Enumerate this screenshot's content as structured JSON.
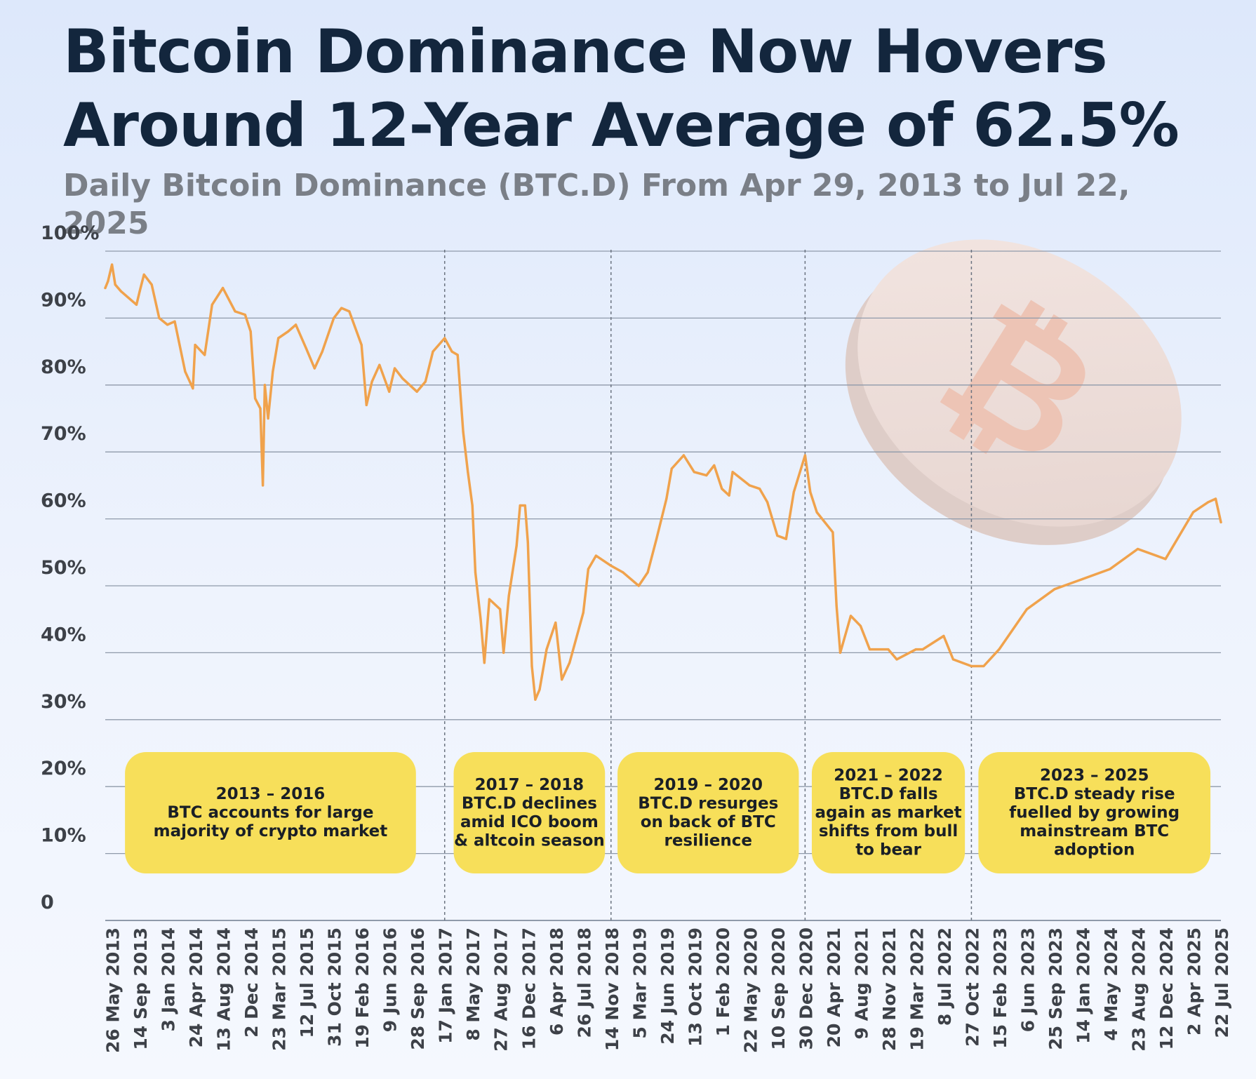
{
  "title": "Bitcoin Dominance Now Hovers Around 12-Year Average of 62.5%",
  "subtitle": "Daily Bitcoin Dominance (BTC.D) From Apr 29, 2013 to Jul 22, 2025",
  "colors": {
    "line": "#f0a24c",
    "grid": "#8f9aaa",
    "annotation_box": "#f7df5a",
    "title": "#13263d",
    "subtitle": "#7a7f87",
    "axis_text": "#3d4148"
  },
  "chart_data": {
    "type": "line",
    "title": "Bitcoin Dominance Now Hovers Around 12-Year Average of 62.5%",
    "subtitle": "Daily Bitcoin Dominance (BTC.D) From Apr 29, 2013 to Jul 22, 2025",
    "xlabel": "",
    "ylabel": "",
    "ylim": [
      0,
      100
    ],
    "x_range": [
      "29 Apr 2013",
      "22 Jul 2025"
    ],
    "grid": true,
    "legend": "none",
    "y_ticks": [
      "0",
      "10%",
      "20%",
      "30%",
      "40%",
      "50%",
      "60%",
      "70%",
      "80%",
      "90%",
      "100%"
    ],
    "x_ticks": [
      "26 May 2013",
      "14 Sep 2013",
      "3 Jan 2014",
      "24 Apr 2014",
      "13 Aug 2014",
      "2 Dec 2014",
      "23 Mar 2015",
      "12 Jul 2015",
      "31 Oct 2015",
      "19 Feb 2016",
      "9 Jun 2016",
      "28 Sep 2016",
      "17 Jan 2017",
      "8 May 2017",
      "27 Aug 2017",
      "16 Dec 2017",
      "6 Apr 2018",
      "26 Jul 2018",
      "14 Nov 2018",
      "5 Mar 2019",
      "24 Jun 2019",
      "13 Oct 2019",
      "1 Feb 2020",
      "22 May 2020",
      "10 Sep 2020",
      "30 Dec 2020",
      "20 Apr 2021",
      "9 Aug 2021",
      "28 Nov 2021",
      "19 Mar 2022",
      "8 Jul 2022",
      "27 Oct 2022",
      "15 Feb 2023",
      "6 Jun 2023",
      "25 Sep 2023",
      "14 Jan 2024",
      "4 May 2024",
      "23 Aug 2024",
      "12 Dec 2024",
      "2 Apr 2025",
      "22 Jul 2025"
    ],
    "period_dividers": [
      "17 Jan 2017",
      "14 Nov 2018",
      "30 Dec 2020",
      "27 Oct 2022"
    ],
    "series": [
      {
        "name": "",
        "points": [
          [
            "29 Apr 2013",
            94.5
          ],
          [
            "10 May 2013",
            95.5
          ],
          [
            "26 May 2013",
            98.0
          ],
          [
            "8 Jun 2013",
            95.0
          ],
          [
            "1 Jul 2013",
            94.0
          ],
          [
            "1 Aug 2013",
            93.0
          ],
          [
            "1 Sep 2013",
            92.0
          ],
          [
            "14 Sep 2013",
            94.0
          ],
          [
            "1 Oct 2013",
            96.5
          ],
          [
            "1 Nov 2013",
            95.0
          ],
          [
            "1 Dec 2013",
            90.0
          ],
          [
            "3 Jan 2014",
            89.0
          ],
          [
            "1 Feb 2014",
            89.5
          ],
          [
            "15 Mar 2014",
            82.0
          ],
          [
            "15 Apr 2014",
            79.5
          ],
          [
            "24 Apr 2014",
            86.0
          ],
          [
            "1 Jun 2014",
            84.5
          ],
          [
            "1 Jul 2014",
            92.0
          ],
          [
            "13 Aug 2014",
            94.5
          ],
          [
            "1 Oct 2014",
            91.0
          ],
          [
            "10 Nov 2014",
            90.5
          ],
          [
            "2 Dec 2014",
            88.0
          ],
          [
            "20 Dec 2014",
            78.0
          ],
          [
            "10 Jan 2015",
            76.5
          ],
          [
            "20 Jan 2015",
            65.0
          ],
          [
            "28 Jan 2015",
            80.0
          ],
          [
            "10 Feb 2015",
            75.0
          ],
          [
            "1 Mar 2015",
            82.0
          ],
          [
            "23 Mar 2015",
            87.0
          ],
          [
            "1 May 2015",
            88.0
          ],
          [
            "1 Jun 2015",
            89.0
          ],
          [
            "12 Jul 2015",
            85.5
          ],
          [
            "15 Aug 2015",
            82.5
          ],
          [
            "15 Sep 2015",
            85.0
          ],
          [
            "31 Oct 2015",
            90.0
          ],
          [
            "1 Dec 2015",
            91.5
          ],
          [
            "1 Jan 2016",
            91.0
          ],
          [
            "19 Feb 2016",
            86.0
          ],
          [
            "10 Mar 2016",
            77.0
          ],
          [
            "1 Apr 2016",
            80.5
          ],
          [
            "1 May 2016",
            83.0
          ],
          [
            "9 Jun 2016",
            79.0
          ],
          [
            "1 Jul 2016",
            82.5
          ],
          [
            "1 Aug 2016",
            81.0
          ],
          [
            "28 Sep 2016",
            79.0
          ],
          [
            "1 Nov 2016",
            80.5
          ],
          [
            "1 Dec 2016",
            85.0
          ],
          [
            "17 Jan 2017",
            87.0
          ],
          [
            "15 Feb 2017",
            85.0
          ],
          [
            "10 Mar 2017",
            84.5
          ],
          [
            "1 Apr 2017",
            73.0
          ],
          [
            "20 Apr 2017",
            67.0
          ],
          [
            "8 May 2017",
            62.0
          ],
          [
            "20 May 2017",
            52.0
          ],
          [
            "10 Jun 2017",
            45.0
          ],
          [
            "25 Jun 2017",
            38.5
          ],
          [
            "15 Jul 2017",
            48.0
          ],
          [
            "27 Aug 2017",
            46.5
          ],
          [
            "10 Sep 2017",
            40.0
          ],
          [
            "1 Oct 2017",
            48.5
          ],
          [
            "1 Nov 2017",
            56.0
          ],
          [
            "15 Nov 2017",
            62.0
          ],
          [
            "5 Dec 2017",
            62.0
          ],
          [
            "16 Dec 2017",
            56.5
          ],
          [
            "1 Jan 2018",
            38.0
          ],
          [
            "15 Jan 2018",
            33.0
          ],
          [
            "1 Feb 2018",
            34.5
          ],
          [
            "1 Mar 2018",
            40.5
          ],
          [
            "6 Apr 2018",
            44.5
          ],
          [
            "1 May 2018",
            36.0
          ],
          [
            "1 Jun 2018",
            38.5
          ],
          [
            "26 Jul 2018",
            46.0
          ],
          [
            "15 Aug 2018",
            52.5
          ],
          [
            "15 Sep 2018",
            54.5
          ],
          [
            "14 Nov 2018",
            53.0
          ],
          [
            "1 Jan 2019",
            52.0
          ],
          [
            "5 Mar 2019",
            50.0
          ],
          [
            "10 Apr 2019",
            52.0
          ],
          [
            "15 May 2019",
            57.0
          ],
          [
            "24 Jun 2019",
            63.0
          ],
          [
            "15 Jul 2019",
            67.5
          ],
          [
            "1 Sep 2019",
            69.5
          ],
          [
            "13 Oct 2019",
            67.0
          ],
          [
            "1 Dec 2019",
            66.5
          ],
          [
            "1 Jan 2020",
            68.0
          ],
          [
            "1 Feb 2020",
            64.5
          ],
          [
            "1 Mar 2020",
            63.5
          ],
          [
            "15 Mar 2020",
            67.0
          ],
          [
            "22 May 2020",
            65.0
          ],
          [
            "1 Jul 2020",
            64.5
          ],
          [
            "1 Aug 2020",
            62.5
          ],
          [
            "10 Sep 2020",
            57.5
          ],
          [
            "15 Oct 2020",
            57.0
          ],
          [
            "15 Nov 2020",
            64.0
          ],
          [
            "30 Dec 2020",
            69.5
          ],
          [
            "20 Jan 2021",
            64.0
          ],
          [
            "15 Feb 2021",
            61.0
          ],
          [
            "20 Apr 2021",
            58.0
          ],
          [
            "5 May 2021",
            47.0
          ],
          [
            "20 May 2021",
            40.0
          ],
          [
            "1 Jul 2021",
            45.5
          ],
          [
            "9 Aug 2021",
            44.0
          ],
          [
            "15 Sep 2021",
            40.5
          ],
          [
            "28 Nov 2021",
            40.5
          ],
          [
            "1 Jan 2022",
            39.0
          ],
          [
            "19 Mar 2022",
            40.5
          ],
          [
            "15 Apr 2022",
            40.5
          ],
          [
            "8 Jul 2022",
            42.5
          ],
          [
            "15 Aug 2022",
            39.0
          ],
          [
            "27 Oct 2022",
            38.0
          ],
          [
            "15 Dec 2022",
            38.0
          ],
          [
            "15 Feb 2023",
            40.5
          ],
          [
            "6 Jun 2023",
            46.5
          ],
          [
            "25 Sep 2023",
            49.5
          ],
          [
            "14 Jan 2024",
            51.0
          ],
          [
            "4 May 2024",
            52.5
          ],
          [
            "23 Aug 2024",
            55.5
          ],
          [
            "12 Dec 2024",
            54.0
          ],
          [
            "2 Apr 2025",
            61.0
          ],
          [
            "1 Jun 2025",
            62.5
          ],
          [
            "1 Jul 2025",
            63.0
          ],
          [
            "22 Jul 2025",
            59.5
          ]
        ]
      }
    ],
    "annotations": [
      {
        "period": "2013 – 2016",
        "text": [
          "BTC accounts for large",
          "majority of crypto market"
        ],
        "from": "17 Jul 2013",
        "to": "24 Sep 2016"
      },
      {
        "period": "2017 – 2018",
        "text": [
          "BTC.D declines",
          "amid ICO boom",
          "& altcoin season"
        ],
        "from": "22 Feb 2017",
        "to": "21 Oct 2018"
      },
      {
        "period": "2019 – 2020",
        "text": [
          "BTC.D resurges",
          "on back of BTC",
          "resilience"
        ],
        "from": "10 Dec 2018",
        "to": "5 Dec 2020"
      },
      {
        "period": "2021 – 2022",
        "text": [
          "BTC.D falls",
          "again as market",
          "shifts from bull",
          "to bear"
        ],
        "from": "26 Jan 2021",
        "to": "1 Oct 2022"
      },
      {
        "period": "2023 – 2025",
        "text": [
          "BTC.D steady rise",
          "fuelled by growing",
          "mainstream BTC",
          "adoption"
        ],
        "from": "24 Nov 2022",
        "to": "10 Jun 2025"
      }
    ]
  }
}
